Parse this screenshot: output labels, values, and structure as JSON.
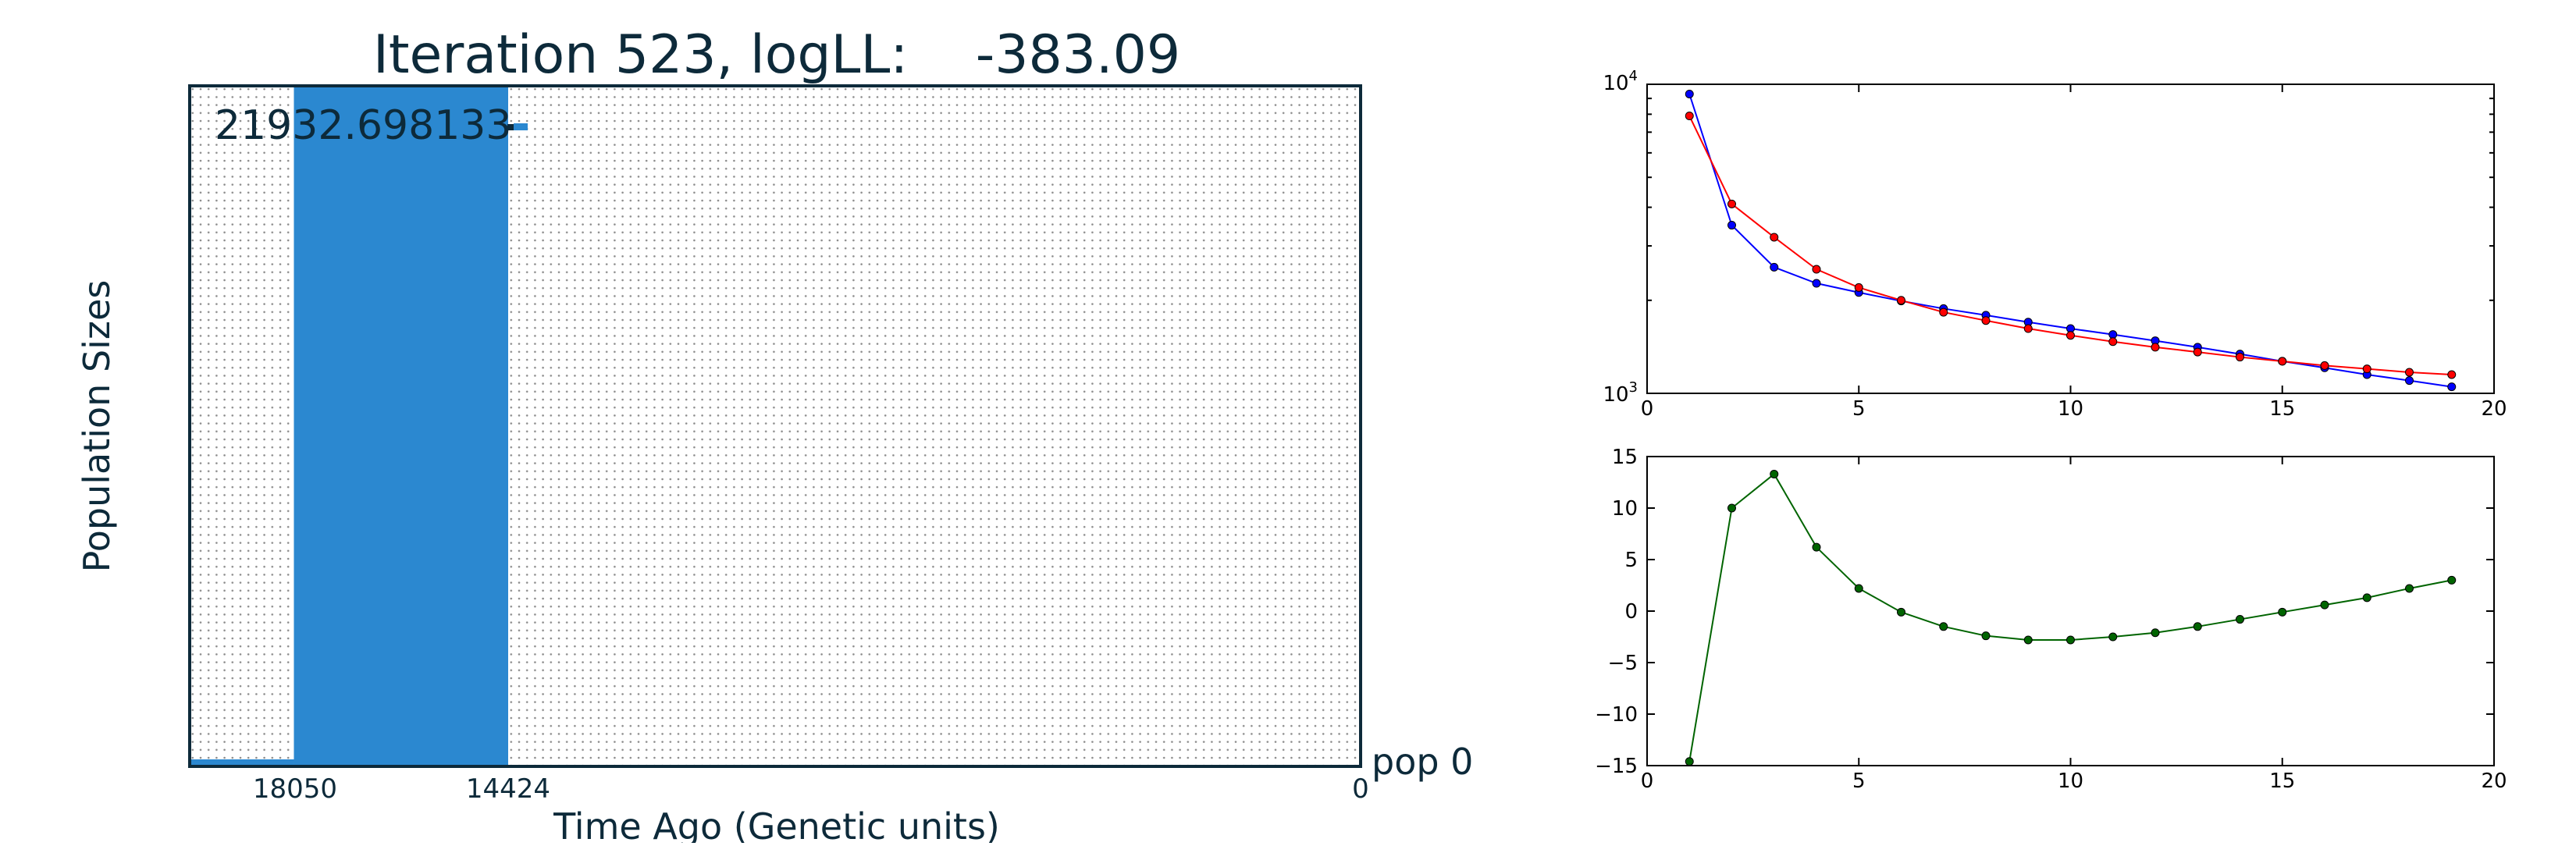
{
  "chart_data": [
    {
      "type": "bar",
      "title": "Iteration 523, logLL:    -383.09",
      "xlabel": "Time Ago (Genetic units)",
      "ylabel": "Population Sizes",
      "x_ticks": [
        "18050",
        "14424",
        "0"
      ],
      "annotation": "21932.698133",
      "population_label": "pop 0",
      "x_axis": "reversed (time ago increasing to the left)",
      "series": [
        {
          "name": "pop 0",
          "color": "#2b88d0",
          "bars": [
            {
              "from": 18050,
              "to": 14424,
              "value": 21932.698133
            },
            {
              "from": 20600,
              "to": 18050,
              "value": 0
            }
          ]
        }
      ],
      "grid": true
    },
    {
      "type": "line",
      "yscale": "log",
      "xlim": [
        0,
        20
      ],
      "ylim": [
        1000,
        10000
      ],
      "x_ticks": [
        "0",
        "5",
        "10",
        "15",
        "20"
      ],
      "y_ticks": [
        {
          "base": "10",
          "exp": "4"
        },
        {
          "base": "10",
          "exp": "3"
        }
      ],
      "x": [
        1,
        2,
        3,
        4,
        5,
        6,
        7,
        8,
        9,
        10,
        11,
        12,
        13,
        14,
        15,
        16,
        17,
        18,
        19
      ],
      "series": [
        {
          "color": "#0000ff",
          "values": [
            9300,
            3500,
            2560,
            2270,
            2120,
            1990,
            1880,
            1790,
            1700,
            1620,
            1550,
            1480,
            1410,
            1340,
            1270,
            1210,
            1150,
            1100,
            1050
          ]
        },
        {
          "color": "#ff0000",
          "values": [
            7900,
            4100,
            3200,
            2520,
            2200,
            2000,
            1830,
            1720,
            1620,
            1540,
            1470,
            1410,
            1360,
            1310,
            1270,
            1230,
            1200,
            1170,
            1150
          ]
        }
      ],
      "grid": false
    },
    {
      "type": "line",
      "xlim": [
        0,
        20
      ],
      "ylim": [
        -15,
        15
      ],
      "x_ticks": [
        "0",
        "5",
        "10",
        "15",
        "20"
      ],
      "y_ticks": [
        "15",
        "10",
        "5",
        "0",
        "−5",
        "−10",
        "−15"
      ],
      "x": [
        1,
        2,
        3,
        4,
        5,
        6,
        7,
        8,
        9,
        10,
        11,
        12,
        13,
        14,
        15,
        16,
        17,
        18,
        19
      ],
      "series": [
        {
          "color": "#006400",
          "values": [
            -14.6,
            10.0,
            13.3,
            6.2,
            2.2,
            -0.1,
            -1.5,
            -2.4,
            -2.8,
            -2.8,
            -2.5,
            -2.1,
            -1.5,
            -0.8,
            -0.1,
            0.6,
            1.3,
            2.2,
            3.0
          ]
        }
      ],
      "grid": false
    }
  ]
}
